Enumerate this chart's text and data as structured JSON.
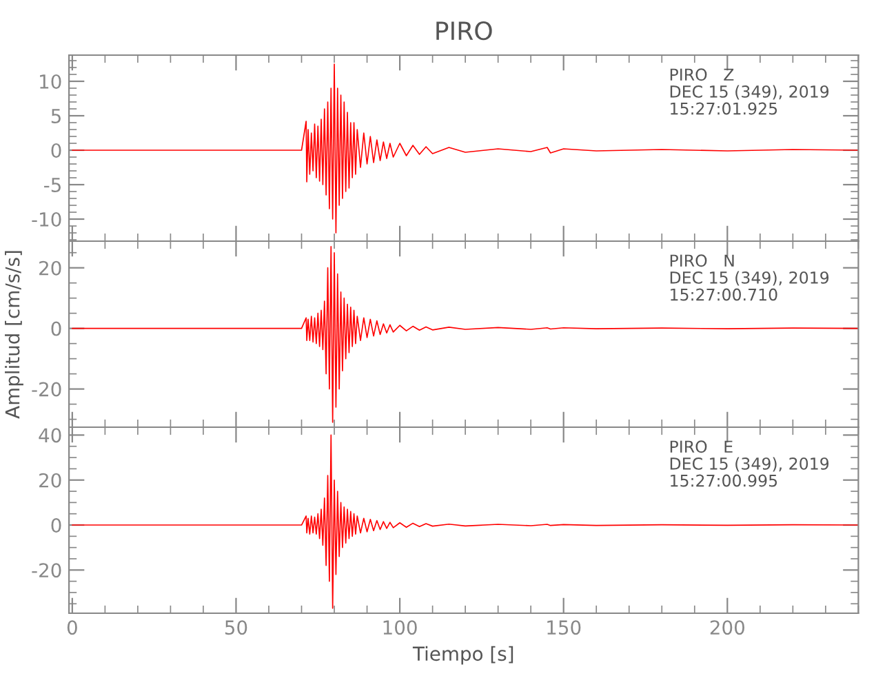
{
  "chart_data": [
    {
      "type": "line",
      "title": "PIRO",
      "tick_labels": "y",
      "x": [
        0,
        10,
        20,
        30,
        40,
        50,
        60,
        70,
        71.4,
        71.6,
        72,
        72.5,
        73,
        73.5,
        74,
        74.5,
        75,
        75.5,
        76,
        76.5,
        77,
        77.5,
        78,
        78.5,
        79,
        79.5,
        80,
        80.5,
        81,
        81.5,
        82,
        82.5,
        83,
        83.5,
        84,
        84.5,
        85,
        85.5,
        86,
        86.5,
        87,
        88,
        89,
        90,
        91,
        92,
        93,
        94,
        95,
        96,
        97,
        98,
        100,
        102,
        104,
        106,
        108,
        110,
        115,
        120,
        130,
        140,
        145,
        146,
        150,
        160,
        180,
        200,
        220,
        240
      ],
      "series": [
        {
          "color": "#ff0000",
          "values": [
            0,
            0,
            0,
            0,
            0,
            0,
            0,
            0,
            4.2,
            -4.6,
            3,
            -3.5,
            2.5,
            -3,
            3.8,
            -4,
            3.5,
            -4.5,
            4.5,
            -5,
            6,
            -6.5,
            7,
            -8.5,
            9,
            -10,
            12.5,
            -12,
            9,
            -8,
            8,
            -7,
            7,
            -6,
            5.5,
            -5.5,
            4,
            -4,
            4,
            -3.5,
            3,
            -2.5,
            2.5,
            -2,
            2,
            -1.8,
            1.5,
            -1.5,
            1.2,
            -1.2,
            1,
            -1,
            1,
            -0.8,
            0.7,
            -0.6,
            0.5,
            -0.5,
            0.4,
            -0.3,
            0.2,
            -0.2,
            0.4,
            -0.4,
            0.2,
            -0.1,
            0.1,
            -0.1,
            0.1,
            0
          ]
        }
      ],
      "xlim": [
        -1,
        240
      ],
      "xticks": [
        0,
        50,
        100,
        150,
        200
      ],
      "ylim": [
        -13.2,
        13.8
      ],
      "yticks": [
        -10,
        -5,
        0,
        5,
        10
      ],
      "annotations": [
        "PIRO   Z\nDEC 15 (349), 2019\n15:27:01.925"
      ]
    },
    {
      "type": "line",
      "ylabel": "Amplitud [cm/s/s]",
      "tick_labels": "y",
      "x": [
        0,
        10,
        20,
        30,
        40,
        50,
        60,
        70,
        71.4,
        71.6,
        72,
        72.5,
        73,
        73.5,
        74,
        74.5,
        75,
        75.5,
        76,
        76.5,
        77,
        77.5,
        78,
        78.5,
        79,
        79.5,
        80,
        80.5,
        81,
        81.5,
        82,
        82.5,
        83,
        83.5,
        84,
        84.5,
        85,
        85.5,
        86,
        86.5,
        87,
        88,
        89,
        90,
        91,
        92,
        93,
        94,
        95,
        96,
        97,
        98,
        100,
        102,
        104,
        106,
        108,
        110,
        115,
        120,
        130,
        140,
        145,
        146,
        150,
        160,
        180,
        200,
        220,
        240
      ],
      "series": [
        {
          "color": "#ff0000",
          "values": [
            0,
            0,
            0,
            0,
            0,
            0,
            0,
            0,
            3.5,
            -4,
            3,
            -4,
            4,
            -4.5,
            3.5,
            -5,
            5,
            -6,
            6,
            -7,
            9,
            -15,
            20,
            -20,
            27,
            -31,
            25,
            -26,
            18,
            -20,
            12,
            -14,
            10,
            -10,
            8,
            -8,
            7,
            -6,
            6,
            -5,
            4,
            -4,
            3.5,
            -3,
            3,
            -2.5,
            2.5,
            -2,
            1.5,
            -1.5,
            1.2,
            -1.2,
            1,
            -0.8,
            0.7,
            -0.6,
            0.5,
            -0.5,
            0.4,
            -0.3,
            0.3,
            -0.3,
            0.2,
            -0.2,
            0.2,
            -0.1,
            0.1,
            -0.1,
            0.1,
            0
          ]
        }
      ],
      "xlim": [
        -1,
        240
      ],
      "xticks": [
        0,
        50,
        100,
        150,
        200
      ],
      "ylim": [
        -32.6,
        28.8
      ],
      "yticks": [
        -20,
        0,
        20
      ],
      "annotations": [
        "PIRO   N\nDEC 15 (349), 2019\n15:27:00.710"
      ]
    },
    {
      "type": "line",
      "xlabel": "Tiempo [s]",
      "x": [
        0,
        10,
        20,
        30,
        40,
        50,
        60,
        70,
        71.4,
        71.6,
        72,
        72.5,
        73,
        73.5,
        74,
        74.5,
        75,
        75.5,
        76,
        76.5,
        77,
        77.5,
        78,
        78.5,
        79,
        79.5,
        80,
        80.5,
        81,
        81.5,
        82,
        82.5,
        83,
        83.5,
        84,
        84.5,
        85,
        85.5,
        86,
        86.5,
        87,
        88,
        89,
        90,
        91,
        92,
        93,
        94,
        95,
        96,
        97,
        98,
        100,
        102,
        104,
        106,
        108,
        110,
        115,
        120,
        130,
        140,
        145,
        146,
        150,
        160,
        180,
        200,
        220,
        240
      ],
      "series": [
        {
          "color": "#ff0000",
          "values": [
            0,
            0,
            0,
            0,
            0,
            0,
            0,
            0,
            4,
            -3.5,
            3,
            -4,
            4,
            -3.5,
            3.5,
            -4,
            5,
            -6,
            7,
            -9,
            12,
            -18,
            22,
            -25,
            40,
            -37,
            20,
            -22,
            15,
            -14,
            10,
            -10,
            8,
            -8,
            7,
            -6,
            6,
            -5,
            5,
            -4,
            4,
            -3.5,
            3,
            -3,
            2.5,
            -2.5,
            2,
            -2,
            1.5,
            -1.5,
            1.2,
            -1.2,
            1,
            -1,
            0.8,
            -0.7,
            0.6,
            -0.5,
            0.4,
            -0.4,
            0.3,
            -0.3,
            0.3,
            -0.2,
            0.2,
            -0.2,
            0.1,
            -0.1,
            0.1,
            0
          ]
        }
      ],
      "xlim": [
        -1,
        240
      ],
      "xticks": [
        0,
        50,
        100,
        150,
        200
      ],
      "ylim": [
        -39.2,
        43.5
      ],
      "yticks": [
        -20,
        0,
        20,
        40
      ],
      "annotations": [
        "PIRO   E\nDEC 15 (349), 2019\n15:27:00.995"
      ]
    }
  ]
}
